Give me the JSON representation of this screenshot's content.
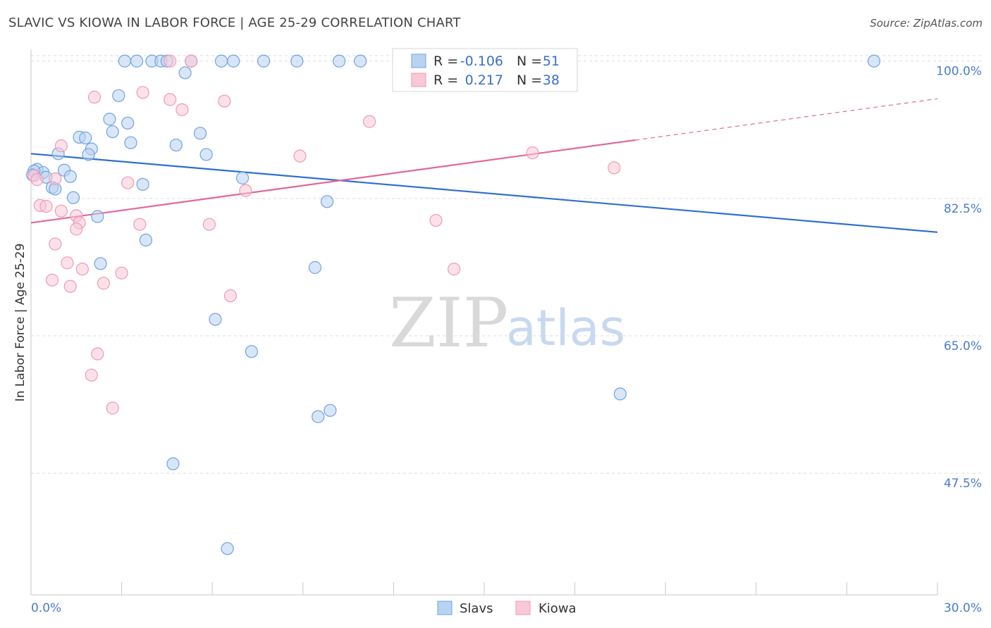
{
  "chart_data": {
    "type": "scatter",
    "title": "SLAVIC VS KIOWA IN LABOR FORCE | AGE 25-29 CORRELATION CHART",
    "source": "Source: ZipAtlas.com",
    "xlabel": "",
    "ylabel": "In Labor Force | Age 25-29",
    "xlim": [
      0,
      30
    ],
    "ylim": [
      32,
      101.5
    ],
    "x_tick_labels": [
      "0.0%",
      "30.0%"
    ],
    "y_ticks": [
      {
        "value": 100,
        "label": "100.0%"
      },
      {
        "value": 82.5,
        "label": "82.5%"
      },
      {
        "value": 65,
        "label": "65.0%"
      },
      {
        "value": 47.5,
        "label": "47.5%"
      }
    ],
    "watermark": {
      "part1": "ZIP",
      "part2": "atlas"
    },
    "legend": [
      {
        "series": "Slavs",
        "r_label": "R =",
        "r_value": "-0.106",
        "n_label": "N =",
        "n_value": "51"
      },
      {
        "series": "Kiowa",
        "r_label": "R =",
        "r_value": "0.217",
        "n_label": "N =",
        "n_value": "38"
      }
    ],
    "series": [
      {
        "name": "Slavs",
        "color": "#6fa3e0",
        "fill": "#b9d2f2",
        "line_color": "#2f6fcf",
        "trend": {
          "x0": 0,
          "y0": 88.2,
          "x1": 30,
          "y1": 78.2,
          "dash_from": null
        },
        "points": [
          [
            3.1,
            100
          ],
          [
            3.5,
            100
          ],
          [
            4.0,
            100
          ],
          [
            4.3,
            100
          ],
          [
            4.5,
            100
          ],
          [
            5.3,
            100
          ],
          [
            6.3,
            100
          ],
          [
            6.7,
            100
          ],
          [
            7.7,
            100
          ],
          [
            8.8,
            100
          ],
          [
            10.2,
            100
          ],
          [
            10.9,
            100
          ],
          [
            27.9,
            100
          ],
          [
            5.1,
            98.5
          ],
          [
            2.9,
            95.6
          ],
          [
            2.6,
            92.6
          ],
          [
            3.2,
            92.1
          ],
          [
            2.7,
            91.0
          ],
          [
            5.6,
            90.8
          ],
          [
            1.6,
            90.3
          ],
          [
            1.8,
            90.2
          ],
          [
            3.3,
            89.6
          ],
          [
            4.8,
            89.3
          ],
          [
            0.9,
            88.2
          ],
          [
            2.0,
            88.8
          ],
          [
            1.9,
            88.1
          ],
          [
            5.8,
            88.1
          ],
          [
            0.2,
            86.2
          ],
          [
            1.1,
            86.1
          ],
          [
            0.4,
            85.8
          ],
          [
            0.5,
            85.2
          ],
          [
            1.3,
            85.3
          ],
          [
            7.0,
            85.1
          ],
          [
            3.7,
            84.3
          ],
          [
            0.7,
            83.9
          ],
          [
            0.8,
            83.7
          ],
          [
            1.4,
            82.6
          ],
          [
            9.8,
            82.1
          ],
          [
            2.2,
            80.2
          ],
          [
            3.8,
            77.2
          ],
          [
            2.3,
            74.2
          ],
          [
            9.4,
            73.7
          ],
          [
            6.1,
            67.1
          ],
          [
            7.3,
            63.0
          ],
          [
            19.5,
            57.6
          ],
          [
            9.9,
            55.5
          ],
          [
            9.5,
            54.7
          ],
          [
            4.7,
            48.7
          ],
          [
            6.5,
            37.9
          ],
          [
            0.1,
            86.0
          ],
          [
            0.05,
            85.5
          ]
        ]
      },
      {
        "name": "Kiowa",
        "color": "#f09ab5",
        "fill": "#f9c8d7",
        "line_color": "#e0689a",
        "trend": {
          "x0": 0,
          "y0": 79.4,
          "x1": 30,
          "y1": 95.2,
          "dash_from": 20.0
        },
        "points": [
          [
            4.6,
            100
          ],
          [
            5.3,
            100
          ],
          [
            3.7,
            96.0
          ],
          [
            2.1,
            95.4
          ],
          [
            4.6,
            95.1
          ],
          [
            6.4,
            94.9
          ],
          [
            5.0,
            93.8
          ],
          [
            11.2,
            92.3
          ],
          [
            1.0,
            89.2
          ],
          [
            8.9,
            87.9
          ],
          [
            16.6,
            88.3
          ],
          [
            19.3,
            86.4
          ],
          [
            0.8,
            85.0
          ],
          [
            3.2,
            84.5
          ],
          [
            7.1,
            83.5
          ],
          [
            0.3,
            81.6
          ],
          [
            0.5,
            81.5
          ],
          [
            1.5,
            80.3
          ],
          [
            1.6,
            79.4
          ],
          [
            3.6,
            79.2
          ],
          [
            5.9,
            79.2
          ],
          [
            1.5,
            78.6
          ],
          [
            13.4,
            79.7
          ],
          [
            0.8,
            76.7
          ],
          [
            1.2,
            74.3
          ],
          [
            1.7,
            73.5
          ],
          [
            3.0,
            73.0
          ],
          [
            14.0,
            73.5
          ],
          [
            0.7,
            72.1
          ],
          [
            2.4,
            71.7
          ],
          [
            1.3,
            71.3
          ],
          [
            6.6,
            70.1
          ],
          [
            2.2,
            62.7
          ],
          [
            2.0,
            60.0
          ],
          [
            2.7,
            55.8
          ],
          [
            0.1,
            85.4
          ],
          [
            0.2,
            84.9
          ],
          [
            1.0,
            80.9
          ]
        ]
      }
    ]
  }
}
